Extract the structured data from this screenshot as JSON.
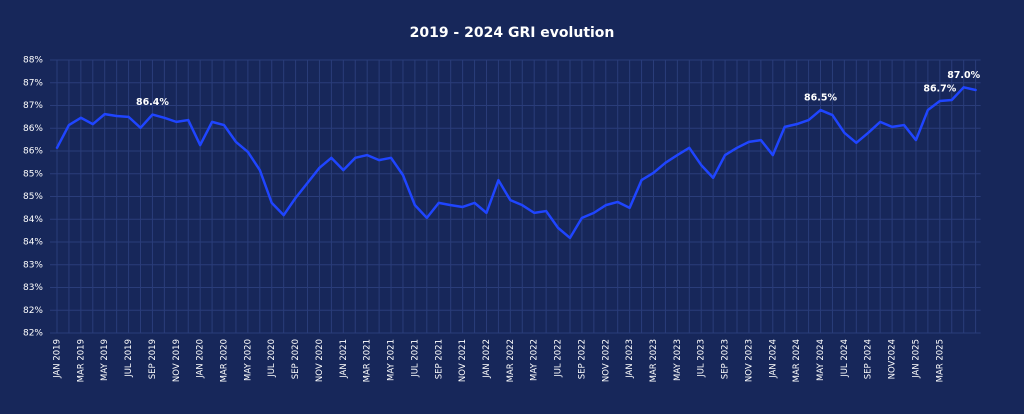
{
  "chart_data": {
    "type": "line",
    "title": "2019 - 2024 GRI evolution",
    "categories": [
      "JAN 2019",
      null,
      "MAR 2019",
      null,
      "MAY 2019",
      null,
      "JUL 2019",
      null,
      "SEP 2019",
      null,
      "NOV 2019",
      null,
      "JAN 2020",
      null,
      "MAR 2020",
      null,
      "MAY 2020",
      null,
      "JUL 2020",
      null,
      "SEP 2020",
      null,
      "NOV 2020",
      null,
      "JAN 2021",
      null,
      "MAR 2021",
      null,
      "MAY 2021",
      null,
      "JUL 2021",
      null,
      "SEP 2021",
      null,
      "NOV 2021",
      null,
      "JAN 2022",
      null,
      "MAR 2022",
      null,
      "MAY 2022",
      null,
      "JUL 2022",
      null,
      "SEP 2022",
      null,
      "NOV 2022",
      null,
      "JAN 2023",
      null,
      "MAR 2023",
      null,
      "MAY 2023",
      null,
      "JUL 2023",
      null,
      "SEP 2023",
      null,
      "NOV 2023",
      null,
      "JAN 2024",
      null,
      "MAR 2024",
      null,
      "MAY 2024",
      null,
      "JUL 2024",
      null,
      "SEP 2024",
      null,
      "NOV2024",
      null,
      "JAN 2025",
      null,
      "MAR 2025",
      null,
      null,
      null
    ],
    "values": [
      85.67,
      86.17,
      86.33,
      86.19,
      86.41,
      86.37,
      86.35,
      86.11,
      86.4,
      86.33,
      86.24,
      86.28,
      85.73,
      86.24,
      86.17,
      85.8,
      85.58,
      85.18,
      84.46,
      84.19,
      84.57,
      84.9,
      85.23,
      85.45,
      85.18,
      85.45,
      85.51,
      85.4,
      85.45,
      85.07,
      84.41,
      84.13,
      84.46,
      84.41,
      84.37,
      84.46,
      84.24,
      84.96,
      84.52,
      84.41,
      84.24,
      84.28,
      83.91,
      83.69,
      84.13,
      84.24,
      84.41,
      84.48,
      84.35,
      84.96,
      85.12,
      85.34,
      85.51,
      85.67,
      85.29,
      85.01,
      85.51,
      85.67,
      85.8,
      85.84,
      85.51,
      86.13,
      86.19,
      86.28,
      86.5,
      86.39,
      86.0,
      85.78,
      86.0,
      86.24,
      86.13,
      86.17,
      85.84,
      86.5,
      86.7,
      86.72,
      87.0,
      86.94
    ],
    "value_labels": [
      null,
      null,
      null,
      null,
      null,
      null,
      null,
      null,
      "86.4%",
      null,
      null,
      null,
      null,
      null,
      null,
      null,
      null,
      null,
      null,
      null,
      null,
      null,
      null,
      null,
      null,
      null,
      null,
      null,
      null,
      null,
      null,
      null,
      null,
      null,
      null,
      null,
      null,
      null,
      null,
      null,
      null,
      null,
      null,
      null,
      null,
      null,
      null,
      null,
      null,
      null,
      null,
      null,
      null,
      null,
      null,
      null,
      null,
      null,
      null,
      null,
      null,
      null,
      null,
      null,
      "86.5%",
      null,
      null,
      null,
      null,
      null,
      null,
      null,
      null,
      null,
      "86.7%",
      null,
      "87.0%",
      null
    ],
    "color": "#1f45ff",
    "ylim": [
      81.6,
      87.6
    ],
    "yticks": [
      {
        "value": 81.6,
        "label": "82%"
      },
      {
        "value": 82.1,
        "label": "82%"
      },
      {
        "value": 82.6,
        "label": "83%"
      },
      {
        "value": 83.1,
        "label": "83%"
      },
      {
        "value": 83.6,
        "label": "84%"
      },
      {
        "value": 84.1,
        "label": "84%"
      },
      {
        "value": 84.6,
        "label": "85%"
      },
      {
        "value": 85.1,
        "label": "85%"
      },
      {
        "value": 85.6,
        "label": "86%"
      },
      {
        "value": 86.1,
        "label": "86%"
      },
      {
        "value": 86.6,
        "label": "87%"
      },
      {
        "value": 87.1,
        "label": "87%"
      },
      {
        "value": 87.6,
        "label": "88%"
      }
    ],
    "grid": true
  }
}
